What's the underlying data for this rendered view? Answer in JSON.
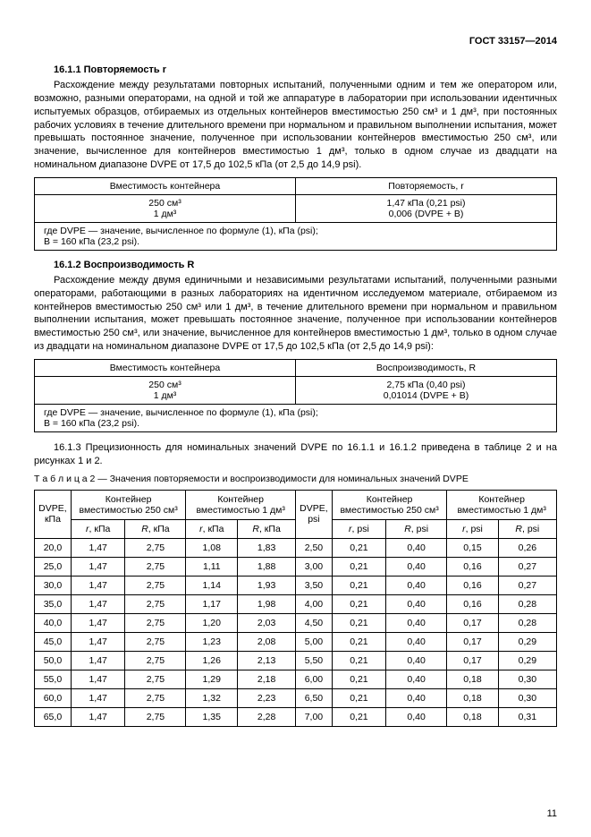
{
  "header": {
    "docnum": "ГОСТ 33157—2014"
  },
  "s1": {
    "title": "16.1.1 Повторяемость r",
    "text": "Расхождение между результатами повторных испытаний, полученными одним и тем же оператором или, возможно, разными операторами, на одной и той же аппаратуре в лаборатории при использовании идентичных испытуемых образцов, отбираемых из отдельных контейнеров вместимостью 250 см³ и 1 дм³, при постоянных рабочих условиях в течение длительного времени при нормальном и правильном выполнении испытания, может превышать постоянное значение, полученное при использовании контейнеров вместимостью 250 см³, или значение, вычисленное для контейнеров вместимостью 1 дм³, только в одном случае из двадцати на номинальном диапазоне DVPE от 17,5 до 102,5 кПа (от 2,5 до 14,9 psi)."
  },
  "t1": {
    "h1": "Вместимость контейнера",
    "h2": "Повторяемость, r",
    "r1c1": "250 см³",
    "r1c2": "1,47 кПа (0,21 psi)",
    "r2c1": "1 дм³",
    "r2c2": "0,006 (DVPE + B)",
    "note": "где DVPE — значение, вычисленное по формуле (1), кПа (psi);\nB = 160 кПа (23,2 psi)."
  },
  "s2": {
    "title": "16.1.2 Воспроизводимость R",
    "text": "Расхождение между двумя единичными и независимыми результатами испытаний, полученными разными операторами, работающими в разных лабораториях на идентичном исследуемом материале, отбираемом из контейнеров вместимостью 250 см³ или 1 дм³, в течение длительного времени при нормальном и правильном выполнении испытания, может превышать постоянное значение, полученное при использовании контейнеров вместимостью 250 см³, или значение, вычисленное для контейнеров вместимостью 1 дм³, только в одном случае из двадцати на номинальном диапазоне DVPE от 17,5 до 102,5 кПа (от 2,5 до 14,9 psi):"
  },
  "t2": {
    "h1": "Вместимость контейнера",
    "h2": "Воспроизводимость, R",
    "r1c1": "250 см³",
    "r1c2": "2,75 кПа (0,40 psi)",
    "r2c1": "1 дм³",
    "r2c2": "0,01014 (DVPE + B)",
    "note": "где DVPE — значение, вычисленное по формуле (1), кПа (psi);\nB = 160 кПа (23,2 psi)."
  },
  "s3": {
    "text": "16.1.3 Прецизионность для номинальных значений DVPE по 16.1.1 и 16.1.2 приведена в таблице 2 и на рисунках 1 и 2."
  },
  "caption2": "Т а б л и ц а  2 — Значения повторяемости и воспроизводимости для номинальных значений DVPE",
  "table2": {
    "headers": {
      "dvpe_kpa": "DVPE, кПа",
      "cont250": "Контейнер вместимостью 250 см³",
      "cont1dm": "Контейнер вместимостью 1 дм³",
      "dvpe_psi": "DVPE, psi",
      "r_kpa": "r, кПа",
      "R_kpa": "R, кПа",
      "r_psi": "r, psi",
      "R_psi": "R, psi"
    },
    "rows": [
      {
        "dvpe_kpa": "20,0",
        "a_r": "1,47",
        "a_R": "2,75",
        "b_r": "1,08",
        "b_R": "1,83",
        "dvpe_psi": "2,50",
        "c_r": "0,21",
        "c_R": "0,40",
        "d_r": "0,15",
        "d_R": "0,26"
      },
      {
        "dvpe_kpa": "25,0",
        "a_r": "1,47",
        "a_R": "2,75",
        "b_r": "1,11",
        "b_R": "1,88",
        "dvpe_psi": "3,00",
        "c_r": "0,21",
        "c_R": "0,40",
        "d_r": "0,16",
        "d_R": "0,27"
      },
      {
        "dvpe_kpa": "30,0",
        "a_r": "1,47",
        "a_R": "2,75",
        "b_r": "1,14",
        "b_R": "1,93",
        "dvpe_psi": "3,50",
        "c_r": "0,21",
        "c_R": "0,40",
        "d_r": "0,16",
        "d_R": "0,27"
      },
      {
        "dvpe_kpa": "35,0",
        "a_r": "1,47",
        "a_R": "2,75",
        "b_r": "1,17",
        "b_R": "1,98",
        "dvpe_psi": "4,00",
        "c_r": "0,21",
        "c_R": "0,40",
        "d_r": "0,16",
        "d_R": "0,28"
      },
      {
        "dvpe_kpa": "40,0",
        "a_r": "1,47",
        "a_R": "2,75",
        "b_r": "1,20",
        "b_R": "2,03",
        "dvpe_psi": "4,50",
        "c_r": "0,21",
        "c_R": "0,40",
        "d_r": "0,17",
        "d_R": "0,28"
      },
      {
        "dvpe_kpa": "45,0",
        "a_r": "1,47",
        "a_R": "2,75",
        "b_r": "1,23",
        "b_R": "2,08",
        "dvpe_psi": "5,00",
        "c_r": "0,21",
        "c_R": "0,40",
        "d_r": "0,17",
        "d_R": "0,29"
      },
      {
        "dvpe_kpa": "50,0",
        "a_r": "1,47",
        "a_R": "2,75",
        "b_r": "1,26",
        "b_R": "2,13",
        "dvpe_psi": "5,50",
        "c_r": "0,21",
        "c_R": "0,40",
        "d_r": "0,17",
        "d_R": "0,29"
      },
      {
        "dvpe_kpa": "55,0",
        "a_r": "1,47",
        "a_R": "2,75",
        "b_r": "1,29",
        "b_R": "2,18",
        "dvpe_psi": "6,00",
        "c_r": "0,21",
        "c_R": "0,40",
        "d_r": "0,18",
        "d_R": "0,30"
      },
      {
        "dvpe_kpa": "60,0",
        "a_r": "1,47",
        "a_R": "2,75",
        "b_r": "1,32",
        "b_R": "2,23",
        "dvpe_psi": "6,50",
        "c_r": "0,21",
        "c_R": "0,40",
        "d_r": "0,18",
        "d_R": "0,30"
      },
      {
        "dvpe_kpa": "65,0",
        "a_r": "1,47",
        "a_R": "2,75",
        "b_r": "1,35",
        "b_R": "2,28",
        "dvpe_psi": "7,00",
        "c_r": "0,21",
        "c_R": "0,40",
        "d_r": "0,18",
        "d_R": "0,31"
      }
    ]
  },
  "pagenum": "11"
}
